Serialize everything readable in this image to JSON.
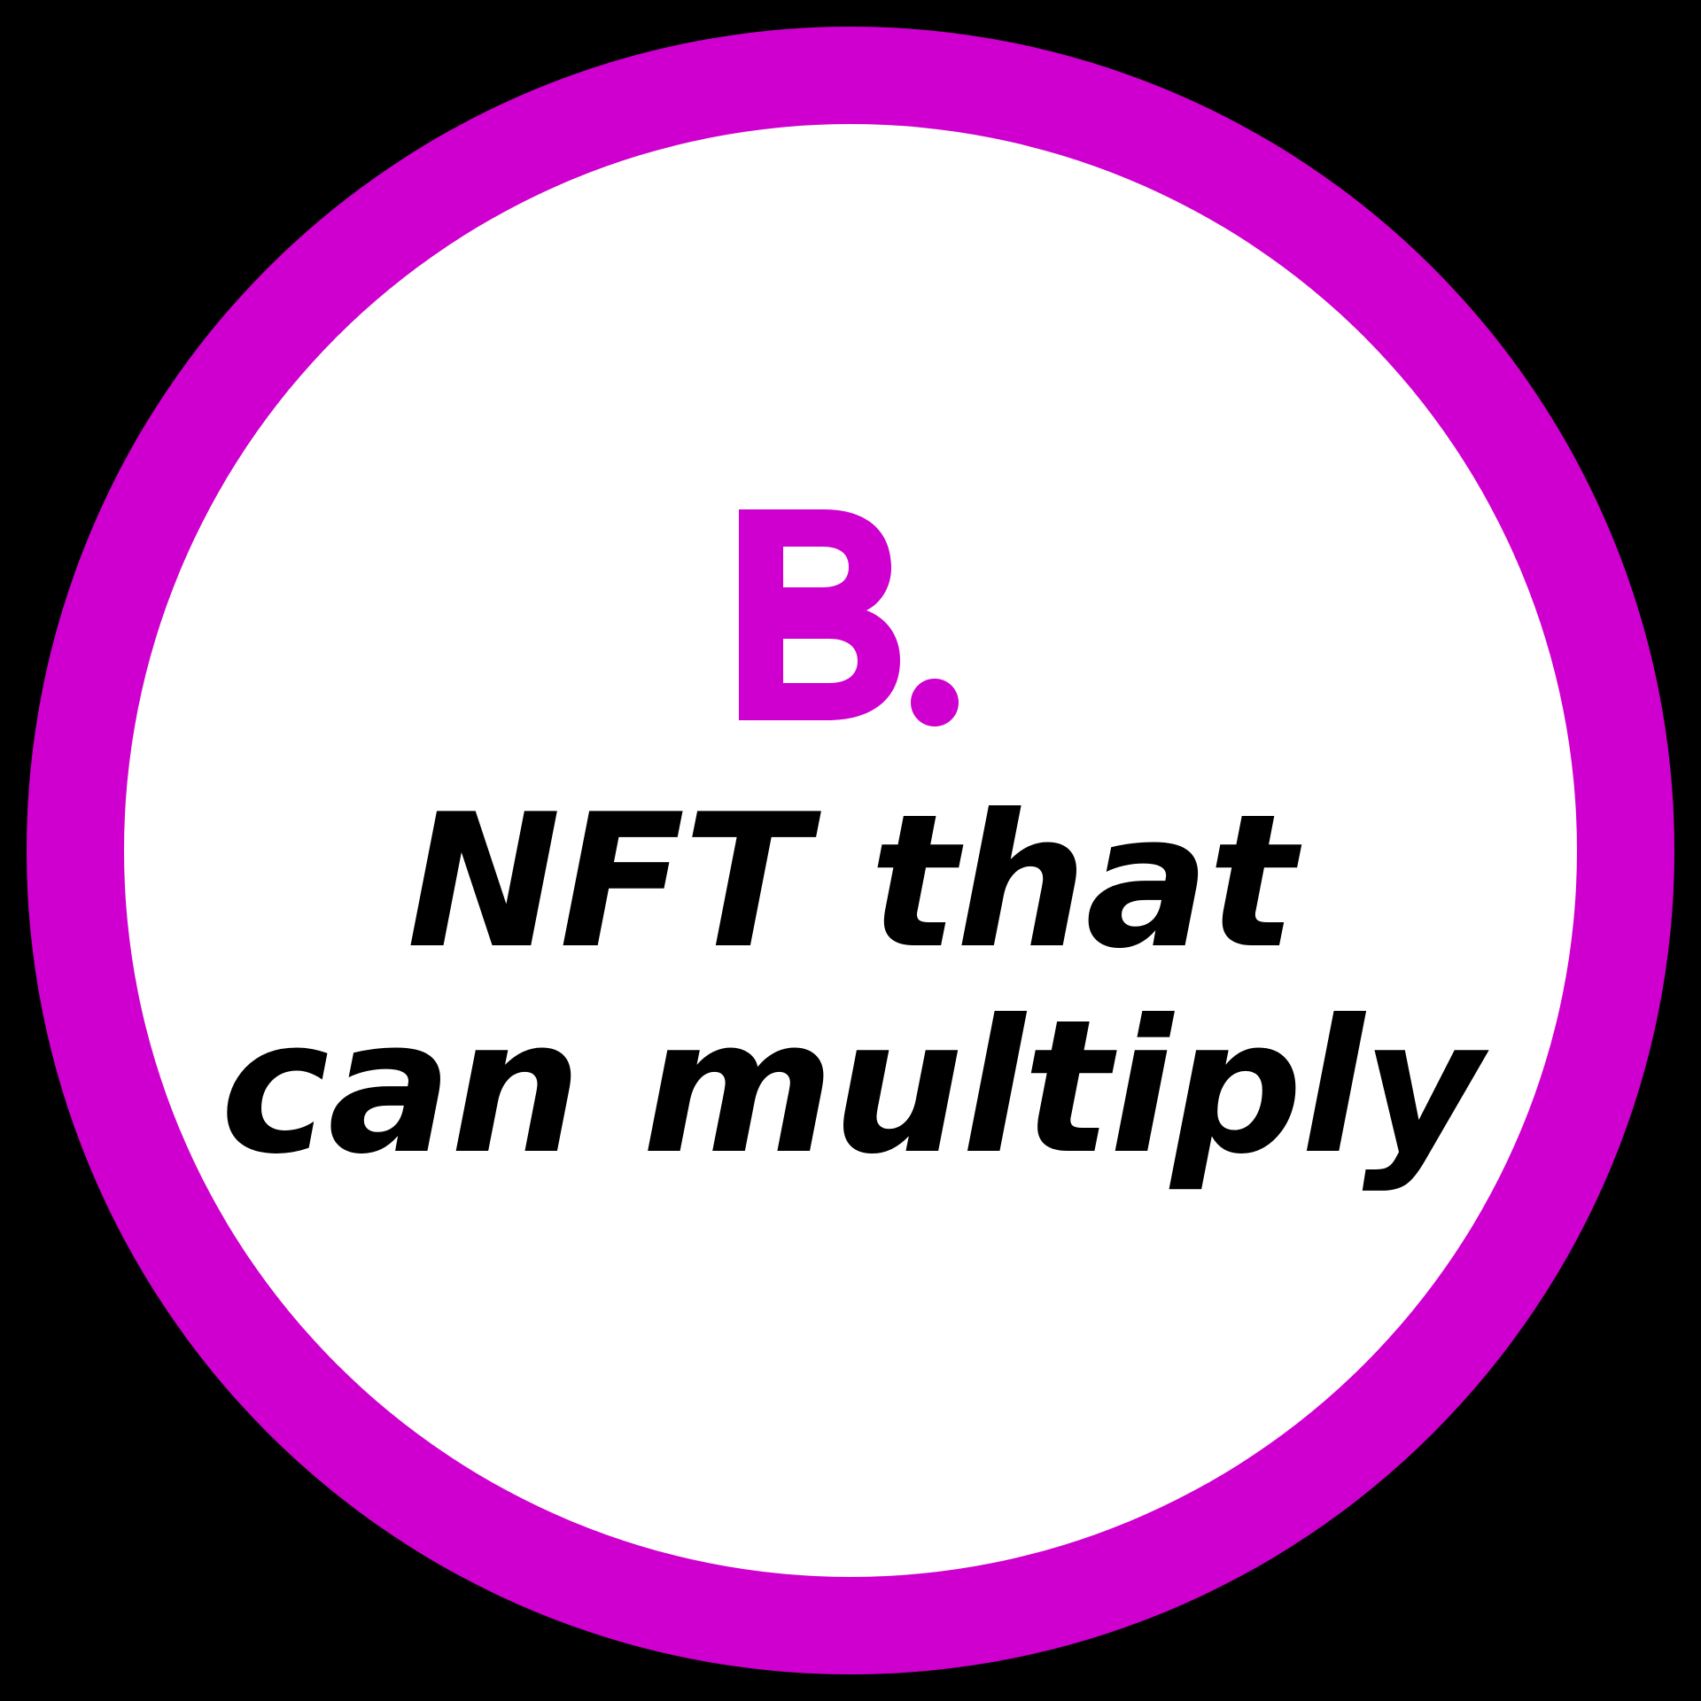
{
  "badge": {
    "ring_color": "#CF00CF",
    "inner_color": "#FFFFFF",
    "background_color": "#000000"
  },
  "logo": {
    "letter": "B",
    "dot": ".",
    "color": "#CF00CF"
  },
  "tagline": {
    "line1": "NFT that",
    "line2": "can multiply",
    "color": "#000000"
  }
}
